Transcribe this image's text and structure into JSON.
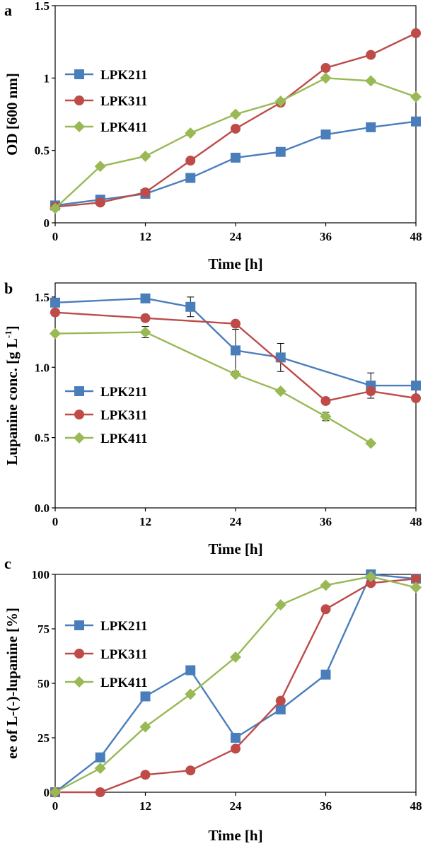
{
  "chart_data": [
    {
      "panel": "a",
      "type": "line",
      "xlabel": "Time [h]",
      "ylabel": "OD [600 nm]",
      "xlim": [
        0,
        48
      ],
      "ylim": [
        0,
        1.5
      ],
      "xticks": [
        "0",
        "12",
        "24",
        "36",
        "48"
      ],
      "yticks": [
        "0",
        "0.5",
        "1",
        "1.5"
      ],
      "legend_position": "left",
      "series": [
        {
          "name": "LPK211",
          "marker": "square",
          "color": "#4a7ebb",
          "x": [
            0,
            6,
            12,
            18,
            24,
            30,
            36,
            42,
            48
          ],
          "y": [
            0.12,
            0.16,
            0.2,
            0.31,
            0.45,
            0.49,
            0.61,
            0.66,
            0.7
          ]
        },
        {
          "name": "LPK311",
          "marker": "circle",
          "color": "#be4b48",
          "x": [
            0,
            6,
            12,
            18,
            24,
            30,
            36,
            42,
            48
          ],
          "y": [
            0.11,
            0.14,
            0.21,
            0.43,
            0.65,
            0.83,
            1.07,
            1.16,
            1.31
          ]
        },
        {
          "name": "LPK411",
          "marker": "diamond",
          "color": "#98b954",
          "x": [
            0,
            6,
            12,
            18,
            24,
            30,
            36,
            42,
            48
          ],
          "y": [
            0.1,
            0.39,
            0.46,
            0.62,
            0.75,
            0.84,
            1.0,
            0.98,
            0.87
          ]
        }
      ]
    },
    {
      "panel": "b",
      "type": "line",
      "xlabel": "Time [h]",
      "ylabel": "Lupanine conc. [g L",
      "ylabel_sup": "-1",
      "ylabel_end": "]",
      "xlim": [
        0,
        48
      ],
      "ylim": [
        0,
        1.6
      ],
      "xticks": [
        "0",
        "12",
        "24",
        "36",
        "48"
      ],
      "yticks": [
        "0.0",
        "0.5",
        "1.0",
        "1.5"
      ],
      "legend_position": "left",
      "series": [
        {
          "name": "LPK211",
          "marker": "square",
          "color": "#4a7ebb",
          "x": [
            0,
            12,
            18,
            24,
            30,
            42,
            48
          ],
          "y": [
            1.46,
            1.49,
            1.43,
            1.12,
            1.07,
            0.87,
            0.87
          ],
          "err": [
            0,
            0.02,
            0.07,
            0.15,
            0.1,
            0.09,
            0
          ]
        },
        {
          "name": "LPK311",
          "marker": "circle",
          "color": "#be4b48",
          "x": [
            0,
            12,
            24,
            36,
            42,
            48
          ],
          "y": [
            1.39,
            1.35,
            1.31,
            0.76,
            0.83,
            0.78
          ],
          "err": [
            0,
            0,
            0,
            0,
            0,
            0
          ]
        },
        {
          "name": "LPK411",
          "marker": "diamond",
          "color": "#98b954",
          "x": [
            0,
            12,
            24,
            30,
            36,
            42
          ],
          "y": [
            1.24,
            1.25,
            0.95,
            0.83,
            0.65,
            0.46
          ],
          "err": [
            0,
            0.04,
            0,
            0,
            0.03,
            0
          ]
        }
      ]
    },
    {
      "panel": "c",
      "type": "line",
      "xlabel": "Time [h]",
      "ylabel": "ee of L-(-)-lupanine [%]",
      "xlim": [
        0,
        48
      ],
      "ylim": [
        0,
        100
      ],
      "xticks": [
        "0",
        "12",
        "24",
        "36",
        "48"
      ],
      "yticks": [
        "0",
        "25",
        "50",
        "75",
        "100"
      ],
      "legend_position": "left",
      "series": [
        {
          "name": "LPK211",
          "marker": "square",
          "color": "#4a7ebb",
          "x": [
            0,
            6,
            12,
            18,
            24,
            30,
            36,
            42,
            48
          ],
          "y": [
            0,
            16,
            44,
            56,
            25,
            38,
            54,
            100,
            98
          ]
        },
        {
          "name": "LPK311",
          "marker": "circle",
          "color": "#be4b48",
          "x": [
            0,
            6,
            12,
            18,
            24,
            30,
            36,
            42,
            48
          ],
          "y": [
            0,
            0,
            8,
            10,
            20,
            42,
            84,
            96,
            98
          ]
        },
        {
          "name": "LPK411",
          "marker": "diamond",
          "color": "#98b954",
          "x": [
            0,
            6,
            12,
            18,
            24,
            30,
            36,
            42,
            48
          ],
          "y": [
            0,
            11,
            30,
            45,
            62,
            86,
            95,
            99,
            94
          ]
        }
      ]
    }
  ]
}
